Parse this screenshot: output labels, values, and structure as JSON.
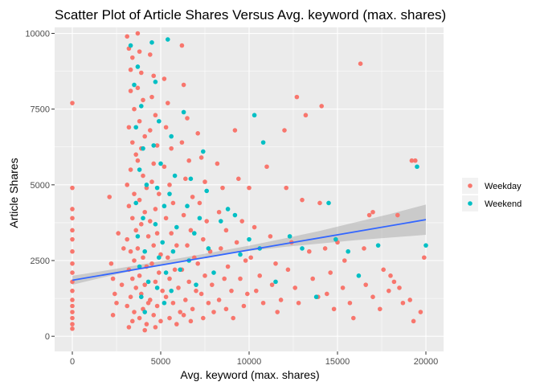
{
  "chart_data": {
    "type": "scatter",
    "title": "Scatter Plot of Article Shares Versus Avg. keyword (max. shares)",
    "xlabel": "Avg. keyword (max. shares)",
    "ylabel": "Article Shares",
    "xlim": [
      -1000,
      21000
    ],
    "ylim": [
      -500,
      10200
    ],
    "x_ticks": [
      0,
      5000,
      10000,
      15000,
      20000
    ],
    "x_tick_labels": [
      "0",
      "5000",
      "10000",
      "15000",
      "20000"
    ],
    "y_ticks": [
      0,
      2500,
      5000,
      7500,
      10000
    ],
    "y_tick_labels": [
      "0",
      "2500",
      "5000",
      "7500",
      "10000"
    ],
    "grid": true,
    "legend_position": "right",
    "series": [
      {
        "name": "Weekday",
        "color": "#F8766D",
        "points": [
          [
            0,
            7700
          ],
          [
            0,
            4900
          ],
          [
            0,
            4200
          ],
          [
            0,
            3900
          ],
          [
            0,
            3500
          ],
          [
            0,
            3200
          ],
          [
            0,
            2800
          ],
          [
            0,
            2400
          ],
          [
            0,
            2100
          ],
          [
            0,
            1800
          ],
          [
            0,
            1500
          ],
          [
            0,
            1200
          ],
          [
            0,
            1000
          ],
          [
            0,
            800
          ],
          [
            0,
            600
          ],
          [
            0,
            400
          ],
          [
            0,
            250
          ],
          [
            2100,
            4600
          ],
          [
            2200,
            2400
          ],
          [
            2300,
            1900
          ],
          [
            2400,
            1400
          ],
          [
            2600,
            3400
          ],
          [
            2800,
            1700
          ],
          [
            2900,
            2900
          ],
          [
            2300,
            700
          ],
          [
            2500,
            1100
          ],
          [
            3100,
            9900
          ],
          [
            3200,
            9500
          ],
          [
            3300,
            8800
          ],
          [
            3400,
            9200
          ],
          [
            3300,
            8100
          ],
          [
            3500,
            7500
          ],
          [
            3200,
            6900
          ],
          [
            3400,
            6400
          ],
          [
            3600,
            6000
          ],
          [
            3300,
            5500
          ],
          [
            3100,
            5000
          ],
          [
            3500,
            4700
          ],
          [
            3200,
            4300
          ],
          [
            3400,
            3900
          ],
          [
            3600,
            3500
          ],
          [
            3100,
            3200
          ],
          [
            3300,
            2800
          ],
          [
            3500,
            2500
          ],
          [
            3200,
            2200
          ],
          [
            3400,
            1900
          ],
          [
            3600,
            1600
          ],
          [
            3300,
            1300
          ],
          [
            3100,
            1000
          ],
          [
            3500,
            800
          ],
          [
            3400,
            500
          ],
          [
            3200,
            300
          ],
          [
            3700,
            10000
          ],
          [
            3800,
            9400
          ],
          [
            3900,
            8700
          ],
          [
            3700,
            8200
          ],
          [
            4000,
            7800
          ],
          [
            3800,
            7100
          ],
          [
            4100,
            6600
          ],
          [
            3900,
            6200
          ],
          [
            3700,
            5800
          ],
          [
            4000,
            5300
          ],
          [
            4200,
            4900
          ],
          [
            3800,
            4500
          ],
          [
            4100,
            4100
          ],
          [
            3900,
            3700
          ],
          [
            4300,
            3300
          ],
          [
            3700,
            2900
          ],
          [
            4000,
            2600
          ],
          [
            4200,
            2300
          ],
          [
            3800,
            2000
          ],
          [
            4100,
            1700
          ],
          [
            3900,
            1400
          ],
          [
            4300,
            1100
          ],
          [
            4000,
            900
          ],
          [
            3800,
            600
          ],
          [
            4200,
            400
          ],
          [
            4100,
            200
          ],
          [
            4400,
            9300
          ],
          [
            4600,
            8600
          ],
          [
            4500,
            7900
          ],
          [
            4700,
            7300
          ],
          [
            4400,
            6800
          ],
          [
            4800,
            6300
          ],
          [
            4600,
            5700
          ],
          [
            4500,
            5100
          ],
          [
            4900,
            4700
          ],
          [
            4700,
            4200
          ],
          [
            4400,
            3800
          ],
          [
            4800,
            3400
          ],
          [
            4600,
            3000
          ],
          [
            5000,
            2700
          ],
          [
            4500,
            2400
          ],
          [
            4900,
            2100
          ],
          [
            4700,
            1800
          ],
          [
            5100,
            1500
          ],
          [
            4400,
            1200
          ],
          [
            4800,
            1000
          ],
          [
            4600,
            700
          ],
          [
            5000,
            500
          ],
          [
            4700,
            300
          ],
          [
            5200,
            8500
          ],
          [
            5400,
            7700
          ],
          [
            5300,
            6900
          ],
          [
            5600,
            6200
          ],
          [
            5200,
            5600
          ],
          [
            5500,
            5000
          ],
          [
            5700,
            4400
          ],
          [
            5300,
            3900
          ],
          [
            5600,
            3400
          ],
          [
            5900,
            3000
          ],
          [
            5400,
            2600
          ],
          [
            5800,
            2200
          ],
          [
            5500,
            1900
          ],
          [
            6000,
            1600
          ],
          [
            5300,
            1300
          ],
          [
            5700,
            1100
          ],
          [
            6100,
            800
          ],
          [
            5500,
            600
          ],
          [
            5900,
            400
          ],
          [
            6200,
            9600
          ],
          [
            6300,
            8300
          ],
          [
            6500,
            7200
          ],
          [
            6200,
            6400
          ],
          [
            6600,
            5800
          ],
          [
            6400,
            5200
          ],
          [
            6800,
            4600
          ],
          [
            6300,
            4000
          ],
          [
            6700,
            3500
          ],
          [
            6500,
            3000
          ],
          [
            6900,
            2600
          ],
          [
            6200,
            2200
          ],
          [
            6600,
            1800
          ],
          [
            7000,
            1500
          ],
          [
            6400,
            1200
          ],
          [
            6800,
            900
          ],
          [
            6300,
            700
          ],
          [
            6700,
            500
          ],
          [
            7100,
            6700
          ],
          [
            7300,
            5900
          ],
          [
            7500,
            5100
          ],
          [
            7200,
            4400
          ],
          [
            7600,
            3800
          ],
          [
            7400,
            3200
          ],
          [
            7800,
            2800
          ],
          [
            7100,
            2400
          ],
          [
            7500,
            2000
          ],
          [
            7900,
            1700
          ],
          [
            7300,
            1400
          ],
          [
            7700,
            1100
          ],
          [
            8000,
            800
          ],
          [
            7400,
            600
          ],
          [
            8200,
            5700
          ],
          [
            8500,
            4900
          ],
          [
            8300,
            4100
          ],
          [
            8700,
            3500
          ],
          [
            8400,
            2900
          ],
          [
            8800,
            2300
          ],
          [
            8600,
            1900
          ],
          [
            9000,
            1500
          ],
          [
            8300,
            1200
          ],
          [
            8700,
            900
          ],
          [
            9100,
            600
          ],
          [
            9200,
            6800
          ],
          [
            9400,
            5200
          ],
          [
            9600,
            3800
          ],
          [
            9300,
            3100
          ],
          [
            9800,
            2500
          ],
          [
            9500,
            1900
          ],
          [
            9900,
            1400
          ],
          [
            9700,
            1000
          ],
          [
            10000,
            4900
          ],
          [
            10300,
            3600
          ],
          [
            10100,
            2600
          ],
          [
            10600,
            2000
          ],
          [
            10400,
            1500
          ],
          [
            10800,
            1100
          ],
          [
            11000,
            5600
          ],
          [
            11200,
            3300
          ],
          [
            11500,
            2400
          ],
          [
            11300,
            1700
          ],
          [
            11800,
            1200
          ],
          [
            11600,
            800
          ],
          [
            12000,
            6800
          ],
          [
            12100,
            4900
          ],
          [
            12400,
            3100
          ],
          [
            12200,
            2200
          ],
          [
            12600,
            1600
          ],
          [
            12800,
            1100
          ],
          [
            12700,
            7900
          ],
          [
            13200,
            7300
          ],
          [
            13000,
            4500
          ],
          [
            13400,
            2800
          ],
          [
            13600,
            1900
          ],
          [
            13900,
            1300
          ],
          [
            14100,
            7600
          ],
          [
            14000,
            4400
          ],
          [
            14300,
            2900
          ],
          [
            14600,
            2100
          ],
          [
            14400,
            1400
          ],
          [
            14800,
            900
          ],
          [
            15000,
            3100
          ],
          [
            15400,
            2500
          ],
          [
            15300,
            1600
          ],
          [
            15700,
            1100
          ],
          [
            15900,
            600
          ],
          [
            16300,
            9000
          ],
          [
            16500,
            2900
          ],
          [
            16800,
            4000
          ],
          [
            16600,
            1700
          ],
          [
            17000,
            1300
          ],
          [
            17400,
            900
          ],
          [
            17000,
            4100
          ],
          [
            17600,
            2200
          ],
          [
            17900,
            1500
          ],
          [
            18200,
            1800
          ],
          [
            18500,
            1600
          ],
          [
            18700,
            1100
          ],
          [
            18000,
            2000
          ],
          [
            18400,
            4000
          ],
          [
            19200,
            5800
          ],
          [
            19400,
            5800
          ],
          [
            19100,
            1200
          ],
          [
            19300,
            500
          ],
          [
            19700,
            800
          ],
          [
            19900,
            2600
          ]
        ]
      },
      {
        "name": "Weekend",
        "color": "#00BFC4",
        "points": [
          [
            3300,
            9600
          ],
          [
            3700,
            8900
          ],
          [
            3500,
            8300
          ],
          [
            3900,
            7600
          ],
          [
            3600,
            6900
          ],
          [
            4000,
            6200
          ],
          [
            3800,
            5500
          ],
          [
            4200,
            5000
          ],
          [
            3600,
            4400
          ],
          [
            4000,
            3900
          ],
          [
            3700,
            3300
          ],
          [
            4100,
            2800
          ],
          [
            3800,
            2300
          ],
          [
            4300,
            1800
          ],
          [
            3900,
            1300
          ],
          [
            4100,
            800
          ],
          [
            4500,
            9700
          ],
          [
            4700,
            8400
          ],
          [
            4900,
            7100
          ],
          [
            4600,
            6300
          ],
          [
            5000,
            5700
          ],
          [
            4800,
            4900
          ],
          [
            5200,
            4300
          ],
          [
            4700,
            3700
          ],
          [
            5100,
            3100
          ],
          [
            4900,
            2600
          ],
          [
            5300,
            2100
          ],
          [
            4800,
            1600
          ],
          [
            5200,
            1100
          ],
          [
            5400,
            9800
          ],
          [
            5600,
            6600
          ],
          [
            5800,
            5300
          ],
          [
            5500,
            4700
          ],
          [
            5900,
            3600
          ],
          [
            5700,
            2800
          ],
          [
            6100,
            2200
          ],
          [
            5600,
            1500
          ],
          [
            6300,
            7400
          ],
          [
            6700,
            5200
          ],
          [
            6500,
            4300
          ],
          [
            6900,
            3400
          ],
          [
            6600,
            2500
          ],
          [
            7000,
            1700
          ],
          [
            7400,
            6100
          ],
          [
            7200,
            3900
          ],
          [
            7700,
            2900
          ],
          [
            7600,
            4800
          ],
          [
            8000,
            2100
          ],
          [
            8400,
            3800
          ],
          [
            8800,
            4200
          ],
          [
            9200,
            4000
          ],
          [
            9500,
            2700
          ],
          [
            10000,
            3200
          ],
          [
            10300,
            7300
          ],
          [
            10600,
            2900
          ],
          [
            10800,
            6400
          ],
          [
            11500,
            1800
          ],
          [
            12300,
            3300
          ],
          [
            13000,
            2900
          ],
          [
            13800,
            1300
          ],
          [
            14500,
            4400
          ],
          [
            14900,
            3200
          ],
          [
            15600,
            2800
          ],
          [
            16200,
            2000
          ],
          [
            17300,
            3000
          ],
          [
            19500,
            5600
          ],
          [
            20000,
            3000
          ]
        ]
      }
    ],
    "trend_line": {
      "color": "#3366FF",
      "method": "lm",
      "x": [
        0,
        20000
      ],
      "y": [
        1850,
        3850
      ],
      "se_band": {
        "color": "#999999",
        "x": [
          0,
          2000,
          4000,
          6000,
          8000,
          10000,
          12000,
          14000,
          16000,
          18000,
          20000
        ],
        "lower": [
          1700,
          1980,
          2240,
          2470,
          2670,
          2820,
          2950,
          3060,
          3170,
          3260,
          3350
        ],
        "upper": [
          2000,
          2180,
          2380,
          2570,
          2780,
          2990,
          3230,
          3480,
          3760,
          4040,
          4350
        ]
      }
    }
  }
}
